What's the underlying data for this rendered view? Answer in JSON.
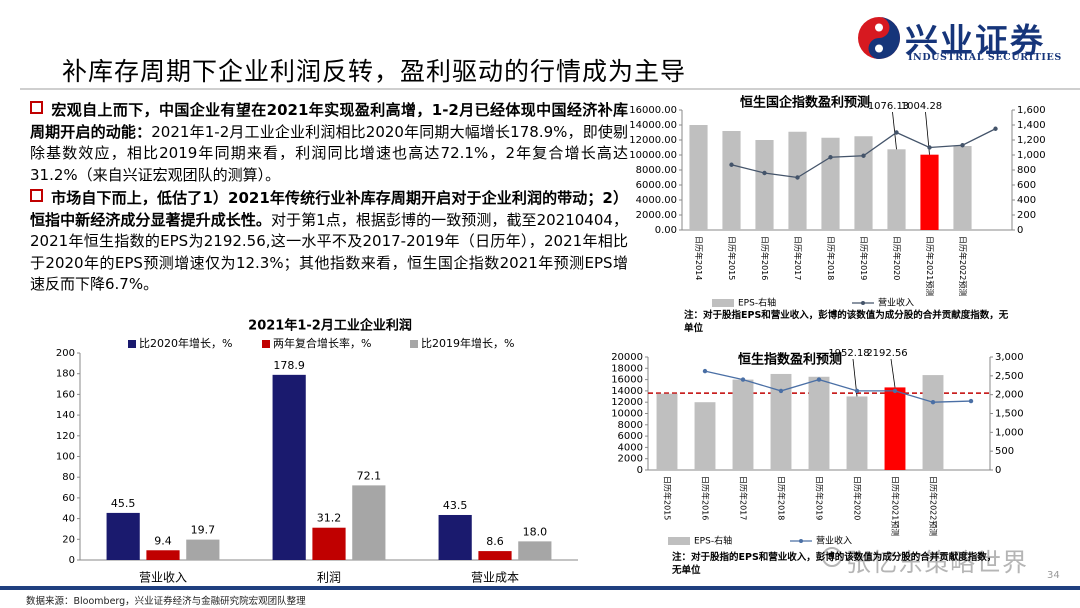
{
  "header": {
    "title": "补库存周期下企业利润反转，盈利驱动的行情成为主导",
    "logo_name": "兴业证券",
    "logo_subtitle": "INDUSTRIAL SECURITIES"
  },
  "bullets": [
    {
      "bold": "宏观自上而下，中国企业有望在2021年实现盈利高增，1-2月已经体现中国经济补库周期开启的动能：",
      "text": "2021年1-2月工业企业利润相比2020年同期大幅增长178.9%，即使剔除基数效应，相比2019年同期来看，利润同比增速也高达72.1%，2年复合增长高达31.2%（来自兴证宏观团队的测算）。"
    },
    {
      "bold": "市场自下而上，低估了1）2021年传统行业补库存周期开启对于企业利润的带动；2）恒指中新经济成分显著提升成长性。",
      "text": "对于第1点，根据彭博的一致预测，截至20210404，2021年恒生指数的EPS为2192.56,这一水平不及2017-2019年（日历年），2021年相比于2020年的EPS预测增速仅为12.3%；其他指数来看，恒生国企指数2021年预测EPS增速反而下降6.7%。"
    }
  ],
  "chart_data": [
    {
      "type": "combo",
      "title": "恒生国企指数盈利预测",
      "categories": [
        "日历年2014",
        "日历年2015",
        "日历年2016",
        "日历年2017",
        "日历年2018",
        "日历年2019",
        "日历年2020",
        "日历年2021预测",
        "日历年2022预测",
        null
      ],
      "series": [
        {
          "name": "EPS-右轴",
          "kind": "bar",
          "axis": "y2",
          "color": "#bfbfbf",
          "colors": [
            "#bfbfbf",
            "#bfbfbf",
            "#bfbfbf",
            "#bfbfbf",
            "#bfbfbf",
            "#bfbfbf",
            "#bfbfbf",
            "#ff0000",
            "#bfbfbf",
            "#bfbfbf"
          ],
          "values": [
            1400,
            1320,
            1200,
            1310,
            1230,
            1250,
            1076.13,
            1004.28,
            1120,
            null
          ],
          "value_labels": [
            null,
            null,
            null,
            null,
            null,
            null,
            "1076.13",
            "1004.28",
            null,
            null
          ]
        },
        {
          "name": "营业收入",
          "kind": "line",
          "color": "#44546a",
          "values": [
            null,
            8700,
            7600,
            7000,
            9700,
            9900,
            13000,
            11000,
            11300,
            13500
          ]
        }
      ],
      "ylim": [
        0,
        16000
      ],
      "yticks": [
        {
          "value": 0,
          "label": "0.00"
        },
        {
          "value": 2000,
          "label": "2000.00"
        },
        {
          "value": 4000,
          "label": "4000.00"
        },
        {
          "value": 6000,
          "label": "6000.00"
        },
        {
          "value": 8000,
          "label": "8000.00"
        },
        {
          "value": 10000,
          "label": "10000.00"
        },
        {
          "value": 12000,
          "label": "12000.00"
        },
        {
          "value": 14000,
          "label": "14000.00"
        },
        {
          "value": 16000,
          "label": "16000.00"
        }
      ],
      "y2lim": [
        0,
        1600
      ],
      "y2ticks": [
        0,
        200,
        400,
        600,
        800,
        {
          "value": 1000,
          "label": "1,000"
        },
        {
          "value": 1200,
          "label": "1,200"
        },
        {
          "value": 1400,
          "label": "1,400"
        },
        {
          "value": 1600,
          "label": "1,600"
        }
      ],
      "note": "注：对于股指EPS和营业收入，彭博的该数值为成分股的合并贡献度指数，无单位"
    },
    {
      "type": "bar",
      "title": "2021年1-2月工业企业利润",
      "categories": [
        "营业收入",
        "利润",
        "营业成本"
      ],
      "series": [
        {
          "name": "比2020年增长，%",
          "color": "#1a1a6e",
          "values": [
            45.5,
            178.9,
            43.5
          ]
        },
        {
          "name": "两年复合增长率，%",
          "color": "#c00000",
          "values": [
            9.4,
            31.2,
            8.6
          ]
        },
        {
          "name": "比2019年增长，%",
          "color": "#a6a6a6",
          "values": [
            19.7,
            72.1,
            18
          ],
          "value_labels": [
            "19.7",
            "72.1",
            "18.0"
          ]
        }
      ],
      "ylim": [
        0,
        200
      ],
      "yticks": [
        0,
        20,
        40,
        60,
        80,
        100,
        120,
        140,
        160,
        180,
        200
      ],
      "data_labels": true
    },
    {
      "type": "combo",
      "title": "恒生指数盈利预测",
      "categories": [
        "日历年2015",
        "日历年2016",
        "日历年2017",
        "日历年2018",
        "日历年2019",
        "日历年2020",
        "日历年2021预测",
        "日历年2022预测",
        null
      ],
      "series": [
        {
          "name": "EPS-右轴",
          "kind": "bar",
          "axis": "y2",
          "color": "#bfbfbf",
          "colors": [
            "#bfbfbf",
            "#bfbfbf",
            "#bfbfbf",
            "#bfbfbf",
            "#bfbfbf",
            "#bfbfbf",
            "#ff0000",
            "#bfbfbf",
            "#bfbfbf"
          ],
          "values": [
            2025,
            1800,
            2400,
            2550,
            2475,
            1952.18,
            2192.56,
            2520,
            null
          ],
          "value_labels": [
            null,
            null,
            null,
            null,
            null,
            "1952.18",
            "2192.56",
            null,
            null
          ]
        },
        {
          "name": "营业收入",
          "kind": "line",
          "color": "#4a6fa5",
          "values": [
            null,
            17500,
            16000,
            14000,
            16000,
            14000,
            14000,
            12000,
            12200
          ]
        }
      ],
      "ylim": [
        0,
        20000
      ],
      "yticks": [
        0,
        2000,
        4000,
        6000,
        8000,
        10000,
        12000,
        14000,
        16000,
        18000,
        20000
      ],
      "y2lim": [
        0,
        3000
      ],
      "y2ticks": [
        0,
        500,
        {
          "value": 1000,
          "label": "1,000"
        },
        {
          "value": 1500,
          "label": "1,500"
        },
        {
          "value": 2000,
          "label": "2,000"
        },
        {
          "value": 2500,
          "label": "2,500"
        },
        {
          "value": 3000,
          "label": "3,000"
        }
      ],
      "reference_line": {
        "value": 2040,
        "axis": "y2",
        "color": "#c00000",
        "style": "dashed"
      },
      "note": "注：对于股指的EPS和营业收入，彭博的该数值为成分股的合并贡献度指数，无单位"
    }
  ],
  "footer": {
    "source": "数据来源：Bloomberg，兴业证券经济与金融研究院宏观团队整理",
    "page": 34,
    "watermark": "张忆东策略世界"
  }
}
